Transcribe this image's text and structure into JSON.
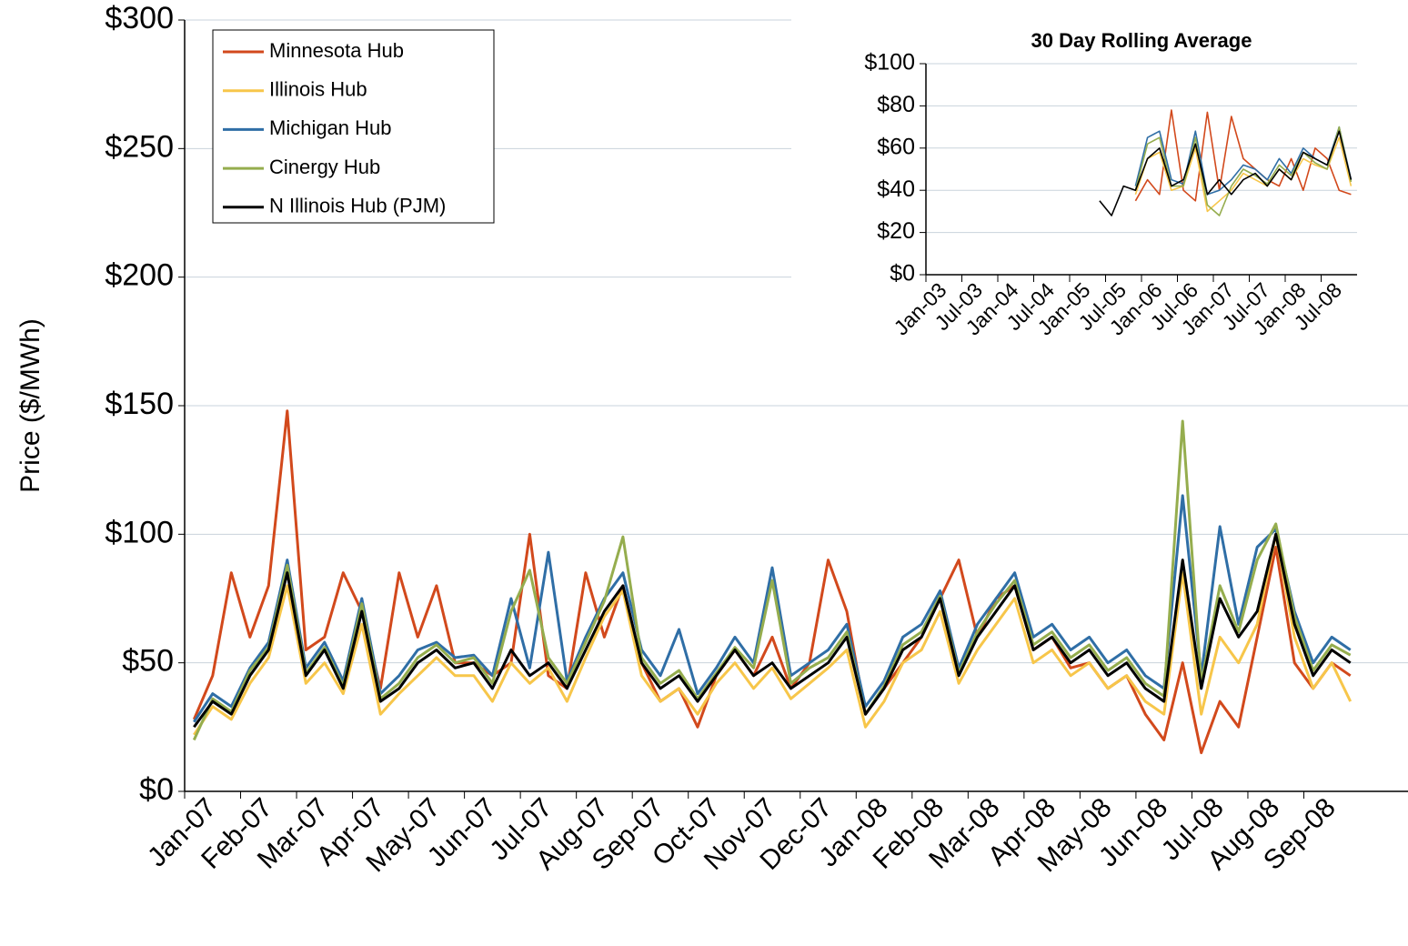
{
  "chart_data": [
    {
      "type": "line",
      "y_label": "Price ($/MWh)",
      "categories": [
        "Jan-07",
        null,
        null,
        "Feb-07",
        null,
        null,
        "Mar-07",
        null,
        null,
        "Apr-07",
        null,
        null,
        "May-07",
        null,
        null,
        "Jun-07",
        null,
        null,
        "Jul-07",
        null,
        null,
        "Aug-07",
        null,
        null,
        "Sep-07",
        null,
        null,
        "Oct-07",
        null,
        null,
        "Nov-07",
        null,
        null,
        "Dec-07",
        null,
        null,
        "Jan-08",
        null,
        null,
        "Feb-08",
        null,
        null,
        "Mar-08",
        null,
        null,
        "Apr-08",
        null,
        null,
        "May-08",
        null,
        null,
        "Jun-08",
        null,
        null,
        "Jul-08",
        null,
        null,
        "Aug-08",
        null,
        null,
        "Sep-08",
        null,
        null
      ],
      "ylim": [
        0,
        300
      ],
      "yticks": [
        {
          "value": 0,
          "label": "$0"
        },
        {
          "value": 50,
          "label": "$50"
        },
        {
          "value": 100,
          "label": "$100"
        },
        {
          "value": 150,
          "label": "$150"
        },
        {
          "value": 200,
          "label": "$200"
        },
        {
          "value": 250,
          "label": "$250"
        },
        {
          "value": 300,
          "label": "$300"
        }
      ],
      "grid": true,
      "series": [
        {
          "name": "Minnesota Hub",
          "color": "#d2491c",
          "values": [
            28,
            45,
            85,
            60,
            80,
            148,
            55,
            60,
            85,
            70,
            40,
            85,
            60,
            80,
            50,
            50,
            45,
            50,
            100,
            45,
            40,
            85,
            60,
            80,
            50,
            35,
            40,
            25,
            45,
            55,
            45,
            60,
            40,
            50,
            90,
            70,
            30,
            40,
            50,
            60,
            75,
            90,
            60,
            75,
            80,
            55,
            60,
            48,
            50,
            40,
            45,
            30,
            20,
            50,
            15,
            35,
            25,
            60,
            95,
            50,
            40,
            50,
            45
          ]
        },
        {
          "name": "Illinois Hub",
          "color": "#f7c64a",
          "values": [
            22,
            33,
            28,
            42,
            52,
            80,
            42,
            50,
            38,
            65,
            30,
            38,
            45,
            52,
            45,
            45,
            35,
            50,
            42,
            48,
            35,
            52,
            68,
            78,
            45,
            35,
            40,
            30,
            42,
            50,
            40,
            48,
            36,
            42,
            48,
            55,
            25,
            35,
            50,
            55,
            70,
            42,
            55,
            65,
            75,
            50,
            55,
            45,
            50,
            40,
            45,
            35,
            30,
            85,
            30,
            60,
            50,
            65,
            100,
            60,
            40,
            50,
            35
          ]
        },
        {
          "name": "Michigan Hub",
          "color": "#2f6ea6",
          "values": [
            27,
            38,
            33,
            48,
            58,
            90,
            48,
            58,
            43,
            75,
            38,
            45,
            55,
            58,
            52,
            53,
            45,
            75,
            48,
            93,
            43,
            60,
            75,
            85,
            55,
            45,
            63,
            38,
            48,
            60,
            50,
            87,
            45,
            50,
            55,
            65,
            33,
            43,
            60,
            65,
            78,
            48,
            65,
            75,
            85,
            60,
            65,
            55,
            60,
            50,
            55,
            45,
            40,
            115,
            45,
            103,
            65,
            95,
            102,
            70,
            50,
            60,
            55
          ]
        },
        {
          "name": "Cinergy Hub",
          "color": "#95ad4e",
          "values": [
            20,
            36,
            31,
            47,
            56,
            88,
            46,
            56,
            41,
            73,
            36,
            42,
            52,
            57,
            50,
            52,
            42,
            70,
            86,
            52,
            42,
            58,
            74,
            99,
            52,
            42,
            47,
            36,
            46,
            56,
            48,
            82,
            42,
            48,
            52,
            62,
            30,
            41,
            57,
            62,
            76,
            46,
            62,
            73,
            82,
            57,
            62,
            52,
            57,
            47,
            52,
            42,
            37,
            144,
            42,
            80,
            62,
            90,
            104,
            68,
            47,
            57,
            53
          ]
        },
        {
          "name": "N Illinois Hub (PJM)",
          "color": "#000000",
          "values": [
            25,
            35,
            30,
            45,
            55,
            85,
            45,
            55,
            40,
            70,
            35,
            40,
            50,
            55,
            48,
            50,
            40,
            55,
            45,
            50,
            40,
            55,
            70,
            80,
            50,
            40,
            45,
            35,
            45,
            55,
            45,
            50,
            40,
            45,
            50,
            60,
            30,
            40,
            55,
            60,
            75,
            45,
            60,
            70,
            80,
            55,
            60,
            50,
            55,
            45,
            50,
            40,
            35,
            90,
            40,
            75,
            60,
            70,
            100,
            65,
            45,
            55,
            50
          ]
        }
      ]
    },
    {
      "type": "line",
      "title": "30 Day Rolling Average",
      "categories": [
        "Jan-03",
        null,
        null,
        "Jul-03",
        null,
        null,
        "Jan-04",
        null,
        null,
        "Jul-04",
        null,
        null,
        "Jan-05",
        null,
        null,
        "Jul-05",
        null,
        null,
        "Jan-06",
        null,
        null,
        "Jul-06",
        null,
        null,
        "Jan-07",
        null,
        null,
        "Jul-07",
        null,
        null,
        "Jan-08",
        null,
        null,
        "Jul-08",
        null,
        null
      ],
      "ylim": [
        0,
        100
      ],
      "yticks": [
        {
          "value": 0,
          "label": "$0"
        },
        {
          "value": 20,
          "label": "$20"
        },
        {
          "value": 40,
          "label": "$40"
        },
        {
          "value": 60,
          "label": "$60"
        },
        {
          "value": 80,
          "label": "$80"
        },
        {
          "value": 100,
          "label": "$100"
        }
      ],
      "grid": true,
      "series": [
        {
          "color": "#d2491c",
          "values": [
            null,
            null,
            null,
            null,
            null,
            null,
            null,
            null,
            null,
            null,
            null,
            null,
            null,
            null,
            null,
            null,
            null,
            35,
            45,
            38,
            78,
            40,
            35,
            77,
            40,
            75,
            55,
            50,
            45,
            42,
            55,
            40,
            60,
            55,
            40,
            38
          ]
        },
        {
          "color": "#f7c64a",
          "values": [
            null,
            null,
            null,
            null,
            null,
            null,
            null,
            null,
            null,
            null,
            null,
            null,
            null,
            null,
            null,
            null,
            null,
            38,
            55,
            58,
            40,
            42,
            60,
            30,
            35,
            40,
            48,
            45,
            42,
            50,
            45,
            55,
            52,
            50,
            65,
            42
          ]
        },
        {
          "color": "#2f6ea6",
          "values": [
            null,
            null,
            null,
            null,
            null,
            null,
            null,
            null,
            null,
            null,
            null,
            null,
            null,
            null,
            null,
            null,
            null,
            42,
            65,
            68,
            45,
            43,
            68,
            38,
            40,
            45,
            52,
            50,
            45,
            55,
            48,
            60,
            55,
            52,
            70,
            45
          ]
        },
        {
          "color": "#95ad4e",
          "values": [
            null,
            null,
            null,
            null,
            null,
            null,
            null,
            null,
            null,
            null,
            null,
            null,
            null,
            null,
            null,
            null,
            null,
            40,
            62,
            65,
            42,
            42,
            65,
            33,
            28,
            42,
            50,
            47,
            43,
            52,
            47,
            58,
            53,
            50,
            70,
            44
          ]
        },
        {
          "color": "#000000",
          "values": [
            null,
            null,
            null,
            null,
            null,
            null,
            null,
            null,
            null,
            null,
            null,
            null,
            null,
            null,
            35,
            28,
            42,
            40,
            55,
            60,
            42,
            45,
            62,
            38,
            45,
            38,
            45,
            48,
            42,
            50,
            45,
            58,
            55,
            52,
            68,
            45
          ]
        }
      ]
    }
  ]
}
